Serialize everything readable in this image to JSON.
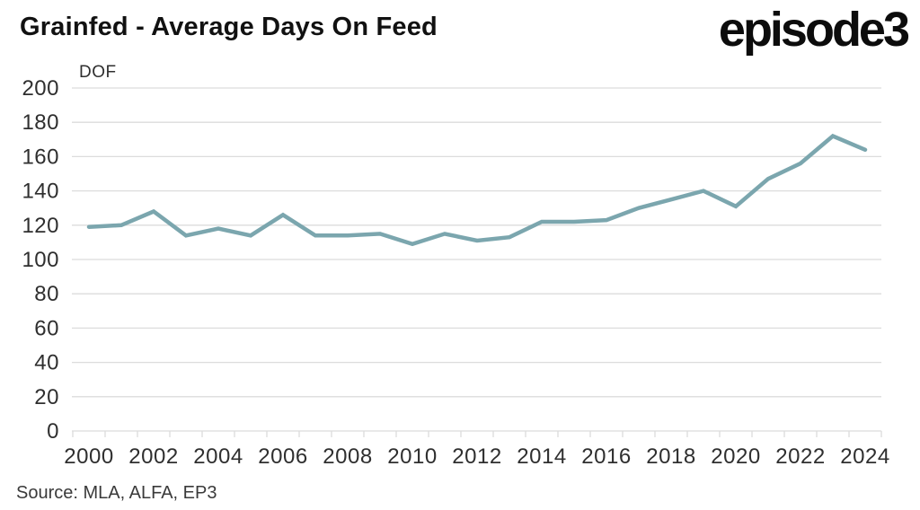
{
  "header": {
    "title": "Grainfed - Average Days On Feed",
    "logo_text": "episode3"
  },
  "footer": {
    "source": "Source: MLA, ALFA, EP3"
  },
  "chart_data": {
    "type": "line",
    "title": "Grainfed - Average Days On Feed",
    "ylabel": "DOF",
    "xlabel": "",
    "series_name": "Average Days On Feed (DOF)",
    "x": [
      2000,
      2001,
      2002,
      2003,
      2004,
      2005,
      2006,
      2007,
      2008,
      2009,
      2010,
      2011,
      2012,
      2013,
      2014,
      2015,
      2016,
      2017,
      2018,
      2019,
      2020,
      2021,
      2022,
      2023,
      2024
    ],
    "values": [
      119,
      120,
      128,
      114,
      118,
      114,
      126,
      114,
      114,
      115,
      109,
      115,
      111,
      113,
      122,
      122,
      123,
      130,
      135,
      140,
      131,
      147,
      156,
      172,
      164
    ],
    "ylim": [
      0,
      200
    ],
    "y_ticks": [
      0,
      20,
      40,
      60,
      80,
      100,
      120,
      140,
      160,
      180,
      200
    ],
    "x_tick_labels": [
      "2000",
      "2002",
      "2004",
      "2006",
      "2008",
      "2010",
      "2012",
      "2014",
      "2016",
      "2018",
      "2020",
      "2022",
      "2024"
    ],
    "grid": "horizontal",
    "legend": "none"
  },
  "colors": {
    "line": "#7BA6AE",
    "grid": "#dcdcdc",
    "axis_text": "#2f2f2f",
    "title_text": "#111111"
  }
}
